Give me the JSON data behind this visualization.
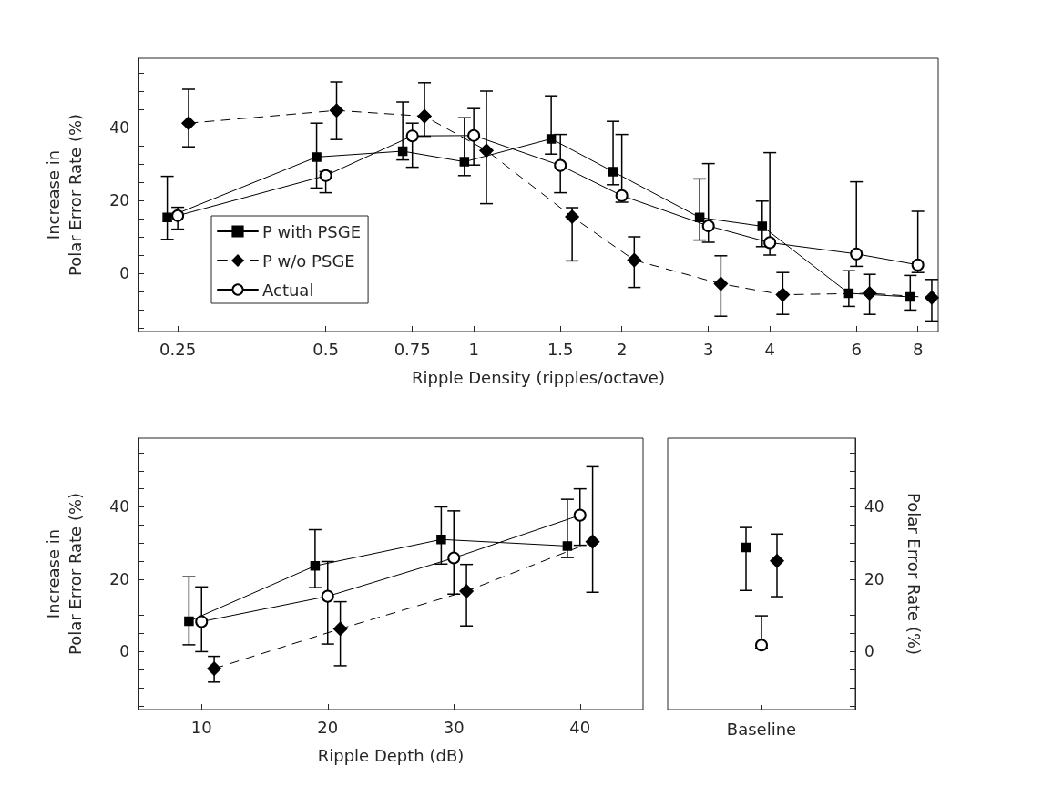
{
  "chart_data": [
    {
      "type": "line",
      "xlabel": "Ripple Density (ripples/octave)",
      "ylabel": "Increase in\nPolar Error Rate (%)",
      "log": "x",
      "xlim": [
        0.208,
        8.8
      ],
      "xticks": [
        0.25,
        0.5,
        0.75,
        1,
        1.5,
        2,
        3,
        4,
        6,
        8
      ],
      "ylim": [
        -16,
        59
      ],
      "yticks": [
        {
          "value": -15,
          "label": null
        },
        {
          "value": -10,
          "label": null
        },
        {
          "value": -5,
          "label": null
        },
        0,
        {
          "value": 5,
          "label": null
        },
        {
          "value": 10,
          "label": null
        },
        {
          "value": 15,
          "label": null
        },
        20,
        {
          "value": 25,
          "label": null
        },
        {
          "value": 30,
          "label": null
        },
        {
          "value": 35,
          "label": null
        },
        40,
        {
          "value": 45,
          "label": null
        },
        {
          "value": 50,
          "label": null
        },
        {
          "value": 55,
          "label": null
        }
      ],
      "legend": "bottom left",
      "series": [
        {
          "name": "P with PSGE",
          "color": "#000000",
          "marker": "square",
          "line_style": "solid",
          "x": [
            0.238,
            0.479,
            0.717,
            0.957,
            1.437,
            1.92,
            2.88,
            3.86,
            5.79,
            7.72
          ],
          "values": [
            15.3,
            31.9,
            33.5,
            30.6,
            36.9,
            27.9,
            15.3,
            12.9,
            -5.5,
            -6.5
          ],
          "errors": [
            [
              9.3,
              26.6
            ],
            [
              23.4,
              41.2
            ],
            [
              31.1,
              47.0
            ],
            [
              26.8,
              42.7
            ],
            [
              32.7,
              48.7
            ],
            [
              24.3,
              41.7
            ],
            [
              9.1,
              25.9
            ],
            [
              7.3,
              19.8
            ],
            [
              -9.1,
              0.7
            ],
            [
              -10.1,
              -0.6
            ]
          ]
        },
        {
          "name": "P w/o PSGE",
          "color": "#000000",
          "marker": "diamond",
          "line_style": "dashed",
          "x": [
            0.263,
            0.526,
            0.794,
            1.061,
            1.585,
            2.12,
            3.18,
            4.25,
            6.38,
            8.54
          ],
          "values": [
            41.2,
            44.7,
            43.1,
            33.7,
            15.5,
            3.6,
            -2.9,
            -5.9,
            -5.5,
            -6.7
          ],
          "errors": [
            [
              34.7,
              50.5
            ],
            [
              36.7,
              52.5
            ],
            [
              37.6,
              52.3
            ],
            [
              19.1,
              50.0
            ],
            [
              3.4,
              18.0
            ],
            [
              -3.9,
              10.0
            ],
            [
              -11.8,
              4.8
            ],
            [
              -11.3,
              0.2
            ],
            [
              -11.3,
              -0.3
            ],
            [
              -13.1,
              -1.7
            ]
          ]
        },
        {
          "name": "Actual",
          "color": "#000000",
          "marker": "circle",
          "line_style": "solid",
          "x": [
            0.25,
            0.5,
            0.75,
            1,
            1.5,
            2,
            3,
            4,
            6,
            8
          ],
          "values": [
            15.8,
            26.8,
            37.7,
            37.8,
            29.6,
            21.3,
            13.0,
            8.4,
            5.3,
            2.3
          ],
          "errors": [
            [
              12.1,
              18.1
            ],
            [
              22.1,
              27.9
            ],
            [
              29.1,
              41.2
            ],
            [
              29.7,
              45.2
            ],
            [
              22.1,
              38.1
            ],
            [
              19.5,
              38.1
            ],
            [
              8.5,
              30.1
            ],
            [
              5.0,
              33.1
            ],
            [
              1.9,
              25.1
            ],
            [
              0.2,
              17.0
            ]
          ]
        }
      ]
    },
    {
      "type": "line",
      "xlabel": "Ripple Depth (dB)",
      "ylabel": "Increase in\nPolar Error Rate (%)",
      "xlim": [
        5,
        45
      ],
      "xticks": [
        10,
        20,
        30,
        40
      ],
      "ylim": [
        -16,
        59
      ],
      "yticks": [
        {
          "value": -15,
          "label": null
        },
        {
          "value": -10,
          "label": null
        },
        {
          "value": -5,
          "label": null
        },
        0,
        {
          "value": 5,
          "label": null
        },
        {
          "value": 10,
          "label": null
        },
        {
          "value": 15,
          "label": null
        },
        20,
        {
          "value": 25,
          "label": null
        },
        {
          "value": 30,
          "label": null
        },
        {
          "value": 35,
          "label": null
        },
        40,
        {
          "value": 45,
          "label": null
        },
        {
          "value": 50,
          "label": null
        },
        {
          "value": 55,
          "label": null
        }
      ],
      "series": [
        {
          "color": "#000000",
          "marker": "square",
          "line_style": "solid",
          "x": [
            9,
            19,
            29,
            39
          ],
          "values": [
            8.4,
            23.7,
            31.0,
            29.2
          ],
          "errors": [
            [
              1.9,
              20.7
            ],
            [
              17.7,
              33.7
            ],
            [
              24.2,
              40.0
            ],
            [
              26.0,
              42.1
            ]
          ]
        },
        {
          "color": "#000000",
          "marker": "diamond",
          "line_style": "dashed",
          "x": [
            11,
            21,
            31,
            41
          ],
          "values": [
            -4.7,
            6.3,
            16.7,
            30.4
          ],
          "errors": [
            [
              -8.4,
              -1.3
            ],
            [
              -3.9,
              13.8
            ],
            [
              7.1,
              24.1
            ],
            [
              16.4,
              51.1
            ]
          ]
        },
        {
          "color": "#000000",
          "marker": "circle",
          "line_style": "solid",
          "x": [
            10,
            20,
            30,
            40
          ],
          "values": [
            8.3,
            15.3,
            25.9,
            37.7
          ],
          "errors": [
            [
              0,
              17.9
            ],
            [
              2.1,
              24.9
            ],
            [
              15.9,
              38.9
            ],
            [
              29.4,
              45.0
            ]
          ]
        }
      ]
    },
    {
      "type": "scatter",
      "categories": [
        "Baseline"
      ],
      "y2label": "Polar Error Rate (%)",
      "y2lim": [
        -16,
        59
      ],
      "y2ticks": [
        {
          "value": -15,
          "label": null
        },
        {
          "value": -10,
          "label": null
        },
        {
          "value": -5,
          "label": null
        },
        0,
        {
          "value": 5,
          "label": null
        },
        {
          "value": 10,
          "label": null
        },
        {
          "value": 15,
          "label": null
        },
        20,
        {
          "value": 25,
          "label": null
        },
        {
          "value": 30,
          "label": null
        },
        {
          "value": 35,
          "label": null
        },
        40,
        {
          "value": 45,
          "label": null
        },
        {
          "value": 50,
          "label": null
        },
        {
          "value": 55,
          "label": null
        }
      ],
      "series": [
        {
          "color": "#000000",
          "marker": "square",
          "axis": "y2",
          "values": [
            28.8
          ],
          "errors": [
            [
              16.9,
              34.3
            ]
          ]
        },
        {
          "color": "#000000",
          "marker": "circle",
          "axis": "y2",
          "values": [
            1.8
          ],
          "errors": [
            [
              1.0,
              9.9
            ]
          ]
        },
        {
          "color": "#000000",
          "marker": "diamond",
          "axis": "y2",
          "values": [
            25.1
          ],
          "errors": [
            [
              15.2,
              32.5
            ]
          ]
        }
      ]
    }
  ]
}
